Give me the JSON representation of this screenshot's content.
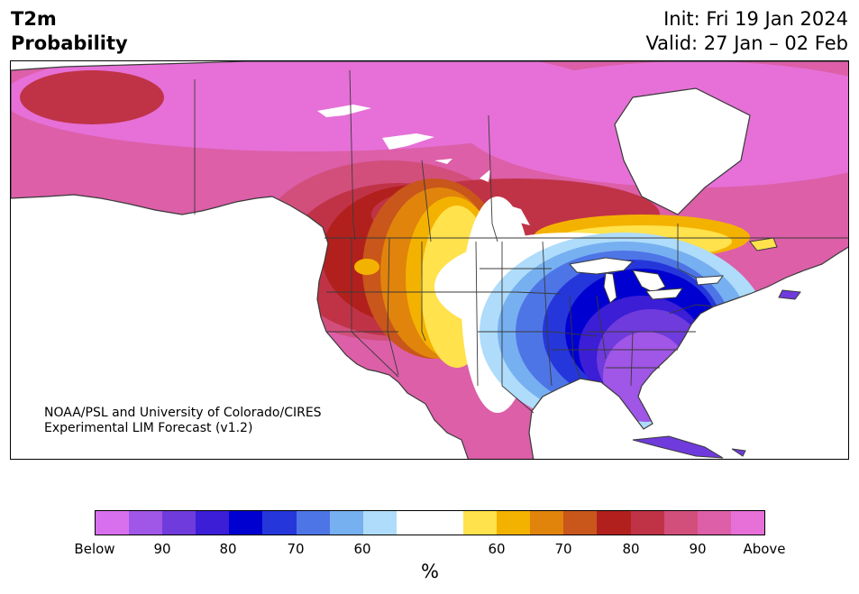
{
  "header": {
    "variable": "T2m",
    "product": "Probability",
    "init": "Init: Fri 19 Jan 2024",
    "valid": "Valid: 27 Jan – 02 Feb"
  },
  "credit": {
    "line1": "NOAA/PSL and University of Colorado/CIRES",
    "line2": "Experimental LIM Forecast (v1.2)"
  },
  "colorbar": {
    "unit": "%",
    "colors": [
      "#d870ee",
      "#a056e6",
      "#6f3bdc",
      "#3b1ed6",
      "#0000d0",
      "#2537da",
      "#4e75e6",
      "#77b0f0",
      "#aedcfa",
      "#ffffff",
      "#ffffff",
      "#ffe24c",
      "#f4b200",
      "#e0840c",
      "#c9561a",
      "#b2201e",
      "#c03347",
      "#d24f7c",
      "#dc5fa8",
      "#e670d7"
    ],
    "ticks": [
      "Below",
      "90",
      "80",
      "70",
      "60",
      "60",
      "70",
      "80",
      "90",
      "Above"
    ]
  }
}
